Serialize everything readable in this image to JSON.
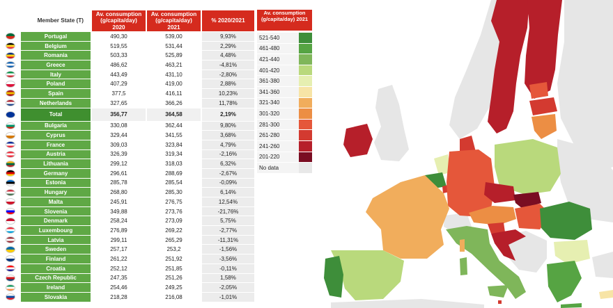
{
  "chart_data": {
    "type": "table",
    "columns": {
      "member": "Member State (T)",
      "c2020": "Av. consumption (g/capita/day) 2020",
      "c2021": "Av. consumption (g/capita/day) 2021",
      "change": "% 2020/2021"
    },
    "rows": [
      {
        "state": "Portugal",
        "c2020": "490,30",
        "c2021": "539,00",
        "change": "9,93%"
      },
      {
        "state": "Belgium",
        "c2020": "519,55",
        "c2021": "531,44",
        "change": "2,29%"
      },
      {
        "state": "Romania",
        "c2020": "503,33",
        "c2021": "525,89",
        "change": "4,48%"
      },
      {
        "state": "Greece",
        "c2020": "486,62",
        "c2021": "463,21",
        "change": "-4,81%"
      },
      {
        "state": "Italy",
        "c2020": "443,49",
        "c2021": "431,10",
        "change": "-2,80%"
      },
      {
        "state": "Poland",
        "c2020": "407,29",
        "c2021": "419,00",
        "change": "2,88%"
      },
      {
        "state": "Spain",
        "c2020": "377,5",
        "c2021": "416,11",
        "change": "10,23%"
      },
      {
        "state": "Netherlands",
        "c2020": "327,65",
        "c2021": "366,26",
        "change": "11,78%"
      },
      {
        "state": "Total",
        "c2020": "356,77",
        "c2021": "364,58",
        "change": "2,19%",
        "is_total": true
      },
      {
        "state": "Bulgaria",
        "c2020": "330,08",
        "c2021": "362,44",
        "change": "9,80%"
      },
      {
        "state": "Cyprus",
        "c2020": "329,44",
        "c2021": "341,55",
        "change": "3,68%"
      },
      {
        "state": "France",
        "c2020": "309,03",
        "c2021": "323,84",
        "change": "4,79%"
      },
      {
        "state": "Austria",
        "c2020": "326,39",
        "c2021": "319,34",
        "change": "-2,16%"
      },
      {
        "state": "Lithuania",
        "c2020": "299,12",
        "c2021": "318,03",
        "change": "6,32%"
      },
      {
        "state": "Germany",
        "c2020": "296,61",
        "c2021": "288,69",
        "change": "-2,67%"
      },
      {
        "state": "Estonia",
        "c2020": "285,78",
        "c2021": "285,54",
        "change": "-0,09%"
      },
      {
        "state": "Hungary",
        "c2020": "268,80",
        "c2021": "285,30",
        "change": "6,14%"
      },
      {
        "state": "Malta",
        "c2020": "245,91",
        "c2021": "276,75",
        "change": "12,54%"
      },
      {
        "state": "Slovenia",
        "c2020": "349,88",
        "c2021": "273,76",
        "change": "-21,76%"
      },
      {
        "state": "Denmark",
        "c2020": "258,24",
        "c2021": "273,09",
        "change": "5,75%"
      },
      {
        "state": "Luxembourg",
        "c2020": "276,89",
        "c2021": "269,22",
        "change": "-2,77%"
      },
      {
        "state": "Latvia",
        "c2020": "299,11",
        "c2021": "265,29",
        "change": "-11,31%"
      },
      {
        "state": "Sweden",
        "c2020": "257,17",
        "c2021": "253,2",
        "change": "-1,56%"
      },
      {
        "state": "Finland",
        "c2020": "261,22",
        "c2021": "251,92",
        "change": "-3,56%"
      },
      {
        "state": "Croatia",
        "c2020": "252,12",
        "c2021": "251,85",
        "change": "-0,11%"
      },
      {
        "state": "Czech Republic",
        "c2020": "247,35",
        "c2021": "251,26",
        "change": "1,58%"
      },
      {
        "state": "Ireland",
        "c2020": "254,46",
        "c2021": "249,25",
        "change": "-2,05%"
      },
      {
        "state": "Slovakia",
        "c2020": "218,28",
        "c2021": "216,08",
        "change": "-1,01%"
      }
    ],
    "legend": {
      "title": "Av. consumption (g/capita/day) 2021",
      "bins": [
        {
          "range": "521-540",
          "color": "#3e8e3a"
        },
        {
          "range": "461-480",
          "color": "#56a443"
        },
        {
          "range": "421-440",
          "color": "#7fb65a"
        },
        {
          "range": "401-420",
          "color": "#b9d97c"
        },
        {
          "range": "361-380",
          "color": "#e6efb1"
        },
        {
          "range": "341-360",
          "color": "#f7e4a6"
        },
        {
          "range": "321-340",
          "color": "#f1ad5c"
        },
        {
          "range": "301-320",
          "color": "#ec8e44"
        },
        {
          "range": "281-300",
          "color": "#e5573a"
        },
        {
          "range": "261-280",
          "color": "#d33a30"
        },
        {
          "range": "241-260",
          "color": "#b61f2a"
        },
        {
          "range": "201-220",
          "color": "#7a0d22"
        }
      ],
      "no_data": {
        "label": "No data",
        "color": "#e8e8e8"
      }
    }
  },
  "flags": {
    "Portugal": [
      "#046a38",
      "#da291c"
    ],
    "Belgium": [
      "#000000",
      "#fdda24",
      "#ef3340"
    ],
    "Romania": [
      "#002b7f",
      "#fcd116",
      "#ce1126"
    ],
    "Greece": [
      "#0d5eaf",
      "#ffffff",
      "#0d5eaf"
    ],
    "Italy": [
      "#009246",
      "#ffffff",
      "#ce2b37"
    ],
    "Poland": [
      "#ffffff",
      "#dc143c"
    ],
    "Spain": [
      "#aa151b",
      "#f1bf00",
      "#aa151b"
    ],
    "Netherlands": [
      "#ae1c28",
      "#ffffff",
      "#21468b"
    ],
    "Total": [
      "#003399",
      "#003399"
    ],
    "Bulgaria": [
      "#ffffff",
      "#00966e",
      "#d62612"
    ],
    "Cyprus": [
      "#ffffff",
      "#d57800"
    ],
    "France": [
      "#002395",
      "#ffffff",
      "#ed2939"
    ],
    "Austria": [
      "#ed2939",
      "#ffffff",
      "#ed2939"
    ],
    "Lithuania": [
      "#fdb913",
      "#006a44",
      "#c1272d"
    ],
    "Germany": [
      "#000000",
      "#dd0000",
      "#ffce00"
    ],
    "Estonia": [
      "#0072ce",
      "#000000",
      "#ffffff"
    ],
    "Hungary": [
      "#ce2939",
      "#ffffff",
      "#477050"
    ],
    "Malta": [
      "#ffffff",
      "#cf142b"
    ],
    "Slovenia": [
      "#ffffff",
      "#0000ff",
      "#ff0000"
    ],
    "Denmark": [
      "#c8102e",
      "#ffffff"
    ],
    "Luxembourg": [
      "#ed2939",
      "#ffffff",
      "#00a1de"
    ],
    "Latvia": [
      "#9e3039",
      "#ffffff",
      "#9e3039"
    ],
    "Sweden": [
      "#006aa7",
      "#fecc00"
    ],
    "Finland": [
      "#ffffff",
      "#003580"
    ],
    "Croatia": [
      "#ff0000",
      "#ffffff",
      "#171796"
    ],
    "Czech Republic": [
      "#ffffff",
      "#d7141a",
      "#11457e"
    ],
    "Ireland": [
      "#169b62",
      "#ffffff",
      "#ff883e"
    ],
    "Slovakia": [
      "#ffffff",
      "#0b4ea2",
      "#ee1c25"
    ]
  },
  "colors": {
    "header_red": "#d52b1e",
    "country_green": "#5fa845",
    "total_green": "#3f8f2f",
    "map_land_non_eu": "#e6e6e6",
    "map_sea": "#ffffff"
  }
}
